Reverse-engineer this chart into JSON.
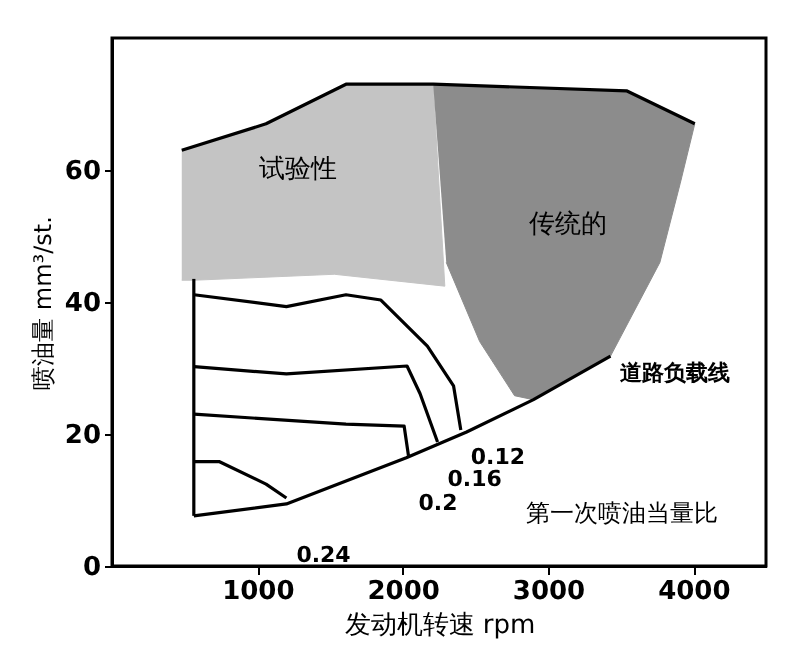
{
  "chart_data": {
    "type": "line",
    "xlabel": "发动机转速 rpm",
    "ylabel": "喷油量 mm³/st.",
    "xlim": [
      0,
      4500
    ],
    "ylim": [
      0,
      80
    ],
    "xticks": [
      1000,
      2000,
      3000,
      4000
    ],
    "yticks": [
      0,
      20,
      40,
      60
    ],
    "grid": false,
    "series": [
      {
        "type": "area",
        "name": "试验性",
        "color": "#c4c4c4",
        "x": [
          480,
          1060,
          1610,
          2210,
          2290,
          1530,
          565,
          480
        ],
        "values": [
          63,
          67,
          73,
          73,
          42.4,
          44.2,
          43.3,
          43.3
        ]
      },
      {
        "type": "area",
        "name": "传统的",
        "color": "#8c8c8c",
        "x": [
          2210,
          3540,
          4010,
          3910,
          3770,
          3430,
          2900,
          2770,
          2530,
          2300
        ],
        "values": [
          73,
          72,
          67,
          58,
          46,
          31.8,
          25.2,
          25.8,
          34,
          46
        ]
      },
      {
        "type": "line",
        "color": "#000000",
        "x": [
          480,
          1060,
          1610,
          2210,
          3540,
          4010
        ],
        "values": [
          63,
          67,
          73,
          73,
          72,
          67
        ]
      },
      {
        "type": "line",
        "color": "#000000",
        "x": [
          563,
          563
        ],
        "values": [
          43.5,
          7.6
        ]
      },
      {
        "type": "line",
        "name": "道路负载线",
        "color": "#000000",
        "x": [
          563,
          1200,
          2025,
          2440,
          2900,
          3430
        ],
        "values": [
          7.6,
          9.4,
          16.4,
          20.3,
          25.2,
          31.8
        ]
      },
      {
        "type": "line",
        "name": "0.12",
        "color": "#000000",
        "x": [
          565,
          1200,
          1610,
          1850,
          2170,
          2350,
          2400
        ],
        "values": [
          41.1,
          39.3,
          41.1,
          40.3,
          33.3,
          27.3,
          20.6
        ]
      },
      {
        "type": "line",
        "name": "0.16",
        "color": "#000000",
        "x": [
          565,
          1200,
          2030,
          2120,
          2240
        ],
        "values": [
          30.2,
          29.1,
          30.3,
          26.1,
          18.8
        ]
      },
      {
        "type": "line",
        "name": "0.2",
        "color": "#000000",
        "x": [
          565,
          1610,
          2010,
          2040
        ],
        "values": [
          23,
          21.5,
          21.2,
          16.7
        ]
      },
      {
        "type": "line",
        "name": "0.24",
        "color": "#000000",
        "x": [
          565,
          740,
          1060,
          1200
        ],
        "values": [
          15.8,
          15.8,
          12.4,
          10.3
        ]
      }
    ],
    "annotations": [
      "第一次喷油当量比"
    ]
  }
}
